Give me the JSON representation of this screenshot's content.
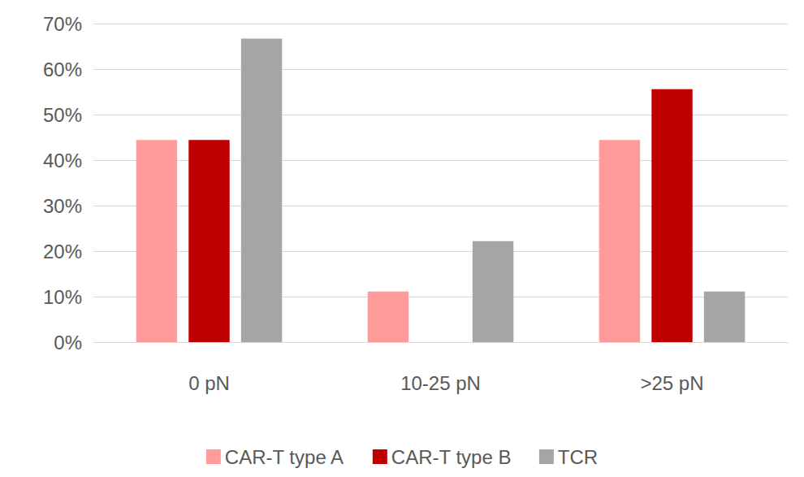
{
  "chart_data": {
    "type": "bar",
    "categories": [
      "0 pN",
      "10-25 pN",
      ">25 pN"
    ],
    "series": [
      {
        "name": "CAR-T type A",
        "color": "#ff9b9b",
        "values": [
          44.4,
          11.1,
          44.4
        ]
      },
      {
        "name": "CAR-T type B",
        "color": "#c00000",
        "values": [
          44.4,
          0,
          55.6
        ]
      },
      {
        "name": "TCR",
        "color": "#a5a5a5",
        "values": [
          66.7,
          22.2,
          11.1
        ]
      }
    ],
    "ylim": [
      0,
      70
    ],
    "yticks": [
      {
        "value": 0,
        "label": "0%"
      },
      {
        "value": 10,
        "label": "10%"
      },
      {
        "value": 20,
        "label": "20%"
      },
      {
        "value": 30,
        "label": "30%"
      },
      {
        "value": 40,
        "label": "40%"
      },
      {
        "value": 50,
        "label": "50%"
      },
      {
        "value": 60,
        "label": "60%"
      },
      {
        "value": 70,
        "label": "70%"
      }
    ],
    "grid": true,
    "legend": "bottom"
  }
}
